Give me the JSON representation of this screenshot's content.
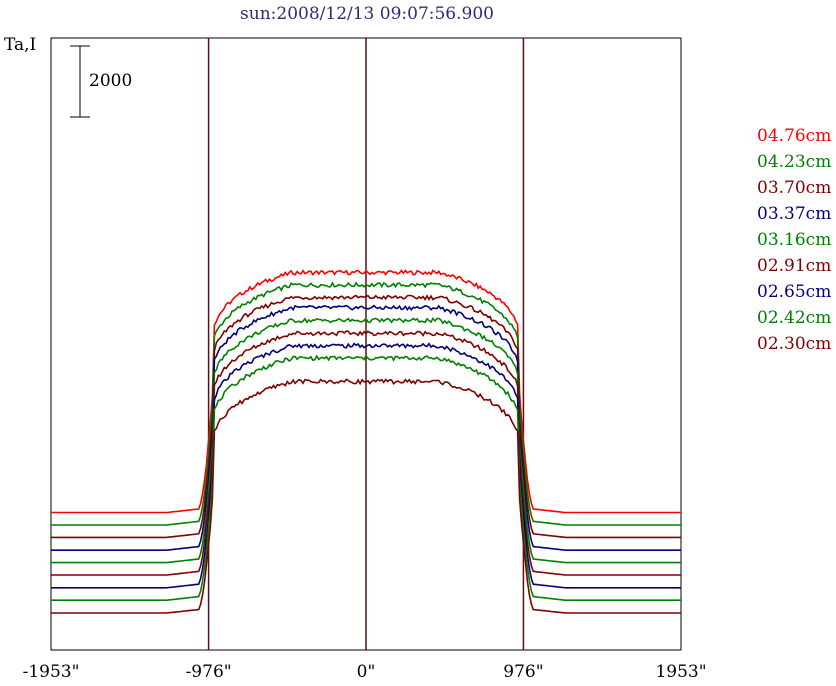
{
  "chart_data": {
    "type": "line",
    "title": "sun:2008/12/13 09:07:56.900",
    "ylabel": "Ta,I",
    "scale_bar_label": "2000",
    "x_ticks": [
      "-1953\"",
      "-976\"",
      "0\"",
      "976\"",
      "1953\""
    ],
    "xlim": [
      -1953,
      1953
    ],
    "limb_markers": [
      -976,
      0,
      976
    ],
    "grid": false,
    "legend_placement": "right",
    "series": [
      {
        "name": "04.76cm",
        "color": "#ff0000",
        "baseline": 2830,
        "peak": 9590
      },
      {
        "name": "04.23cm",
        "color": "#008000",
        "baseline": 2480,
        "peak": 9240
      },
      {
        "name": "03.70cm",
        "color": "#800000",
        "baseline": 2130,
        "peak": 8890
      },
      {
        "name": "03.37cm",
        "color": "#000080",
        "baseline": 1770,
        "peak": 8600
      },
      {
        "name": "03.16cm",
        "color": "#008000",
        "baseline": 1420,
        "peak": 8240
      },
      {
        "name": "02.91cm",
        "color": "#800000",
        "baseline": 1070,
        "peak": 7880
      },
      {
        "name": "02.65cm",
        "color": "#000080",
        "baseline": 710,
        "peak": 7530
      },
      {
        "name": "02.42cm",
        "color": "#008000",
        "baseline": 360,
        "peak": 7180
      },
      {
        "name": "02.30cm",
        "color": "#800000",
        "baseline": 0,
        "peak": 6520
      }
    ]
  }
}
